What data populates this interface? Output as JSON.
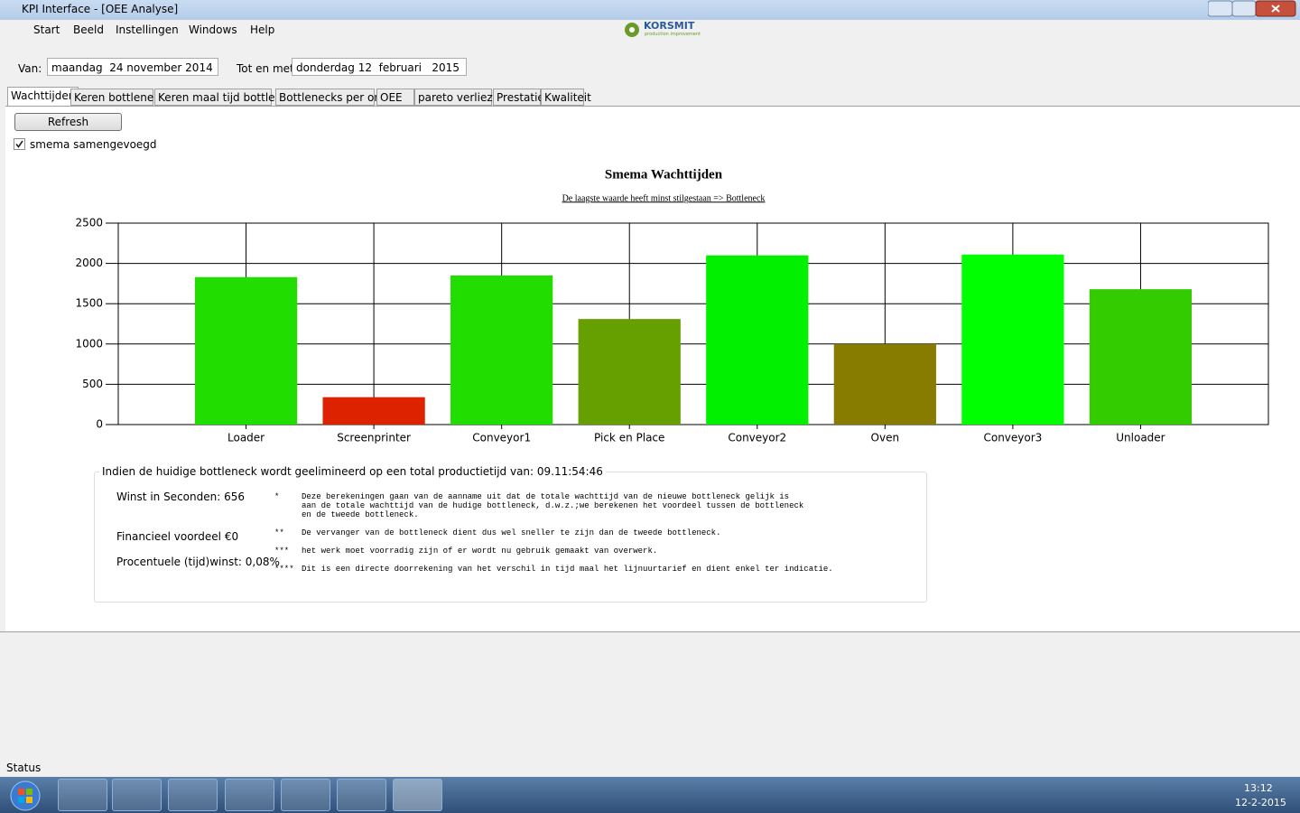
{
  "window": {
    "title": "KPI Interface - [OEE Analyse]"
  },
  "logo": {
    "name": "KORSMIT",
    "tagline": "production improvement"
  },
  "menu": [
    "Start",
    "Beeld",
    "Instellingen",
    "Windows",
    "Help"
  ],
  "filters": {
    "from_label": "Van:",
    "from_value": "maandag  24 november 2014",
    "to_label": "Tot en met:",
    "to_value": "donderdag 12  februari   2015"
  },
  "tabs": [
    "Wachttijden",
    "Keren bottleneck",
    "Keren maal tijd bottleneck",
    "Bottlenecks per order",
    "OEE",
    "pareto verliezen",
    "Prestatie",
    "Kwaliteit"
  ],
  "controls": {
    "refresh": "Refresh",
    "checkbox": "smema samengevoegd",
    "checked": true
  },
  "chart_data": {
    "type": "bar",
    "title": "Smema Wachttijden",
    "subtitle": "De laagste waarde heeft minst stilgestaan => Bottleneck",
    "categories": [
      "Loader",
      "Screenprinter",
      "Conveyor1",
      "Pick en Place",
      "Conveyor2",
      "Oven",
      "Conveyor3",
      "Unloader"
    ],
    "values": [
      1830,
      340,
      1850,
      1310,
      2100,
      1000,
      2110,
      1680
    ],
    "colors": [
      "#22dd00",
      "#dd2200",
      "#22dd00",
      "#66a000",
      "#00f000",
      "#887c00",
      "#00ff00",
      "#33cc00"
    ],
    "ylim": [
      0,
      2500
    ],
    "yticks": [
      0,
      500,
      1000,
      1500,
      2000,
      2500
    ],
    "grid": true
  },
  "info": {
    "heading": "Indien de huidige bottleneck wordt geelimineerd op een total productietijd van: 09.11:54:46",
    "items": [
      "Winst in Seconden: 656",
      "Financieel voordeel €0",
      "Procentuele (tijd)winst: 0,08%"
    ],
    "notes": [
      {
        "mark": "*",
        "lines": [
          "Deze berekeningen gaan van de aanname uit dat de totale wachttijd van de nieuwe bottleneck gelijk is",
          "aan de totale wachttijd van de hudige bottleneck, d.w.z.;we berekenen het voordeel tussen de bottleneck",
          "en de tweede bottleneck."
        ]
      },
      {
        "mark": "**",
        "lines": [
          "De vervanger van de bottleneck dient dus wel sneller te zijn dan de tweede bottleneck."
        ]
      },
      {
        "mark": "***",
        "lines": [
          "het werk moet voorradig zijn of er wordt nu gebruik gemaakt van overwerk."
        ]
      },
      {
        "mark": "****",
        "lines": [
          "Dit is een directe doorrekening van het verschil in tijd maal het lijnuurtarief en dient enkel ter indicatie."
        ]
      }
    ]
  },
  "status": "Status",
  "clock": {
    "time": "13:12",
    "date": "12-2-2015"
  }
}
